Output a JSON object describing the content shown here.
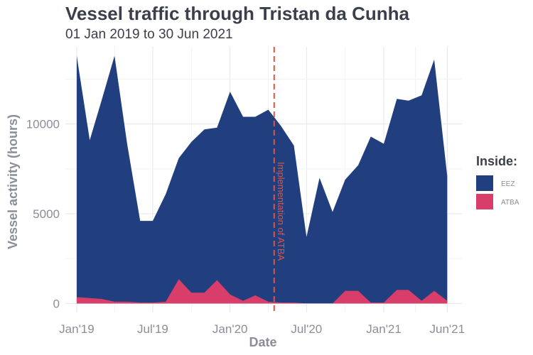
{
  "chart_data": {
    "type": "area",
    "title": "Vessel traffic through Tristan da Cunha",
    "subtitle": "01 Jan 2019 to 30 Jun 2021",
    "xlabel": "Date",
    "ylabel": "Vessel activity (hours)",
    "x": [
      "2019-01-01",
      "2019-02-01",
      "2019-03-01",
      "2019-04-01",
      "2019-05-01",
      "2019-06-01",
      "2019-07-01",
      "2019-08-01",
      "2019-09-01",
      "2019-10-01",
      "2019-11-01",
      "2019-12-01",
      "2020-01-01",
      "2020-02-01",
      "2020-03-01",
      "2020-04-01",
      "2020-05-01",
      "2020-06-01",
      "2020-07-01",
      "2020-08-01",
      "2020-09-01",
      "2020-10-01",
      "2020-11-01",
      "2020-12-01",
      "2021-01-01",
      "2021-02-01",
      "2021-03-01",
      "2021-04-01",
      "2021-05-01",
      "2021-06-01"
    ],
    "series": [
      {
        "name": "EEZ",
        "color": "#213f7f",
        "values": [
          13800,
          9100,
          11300,
          13800,
          8900,
          4600,
          4600,
          6100,
          8100,
          9000,
          9700,
          9800,
          11800,
          10400,
          10400,
          10800,
          9900,
          8800,
          3700,
          7000,
          5100,
          6900,
          7700,
          9300,
          8900,
          11400,
          11300,
          11600,
          13600,
          7100
        ]
      },
      {
        "name": "ATBA",
        "color": "#d93d69",
        "values": [
          350,
          300,
          250,
          100,
          100,
          50,
          50,
          100,
          1350,
          600,
          600,
          1300,
          500,
          150,
          450,
          100,
          50,
          50,
          0,
          0,
          0,
          700,
          700,
          50,
          50,
          750,
          750,
          150,
          700,
          150
        ]
      }
    ],
    "stacked": false,
    "xlim": [
      "2018-12-05",
      "2021-07-06"
    ],
    "ylim": [
      -500,
      14300
    ],
    "x_ticks": [
      {
        "date": "2019-01-01",
        "label": "Jan'19"
      },
      {
        "date": "2019-07-01",
        "label": "Jul'19"
      },
      {
        "date": "2020-01-01",
        "label": "Jan'20"
      },
      {
        "date": "2020-07-01",
        "label": "Jul'20"
      },
      {
        "date": "2021-01-01",
        "label": "Jan'21"
      },
      {
        "date": "2021-06-01",
        "label": "Jun'21"
      }
    ],
    "y_ticks": [
      0,
      5000,
      10000
    ],
    "grid": true,
    "legend": {
      "title": "Inside:",
      "placement": "right"
    },
    "annotation": {
      "date": "2020-04-15",
      "text": "Implementation of ATBA",
      "color": "#e0533f"
    }
  }
}
